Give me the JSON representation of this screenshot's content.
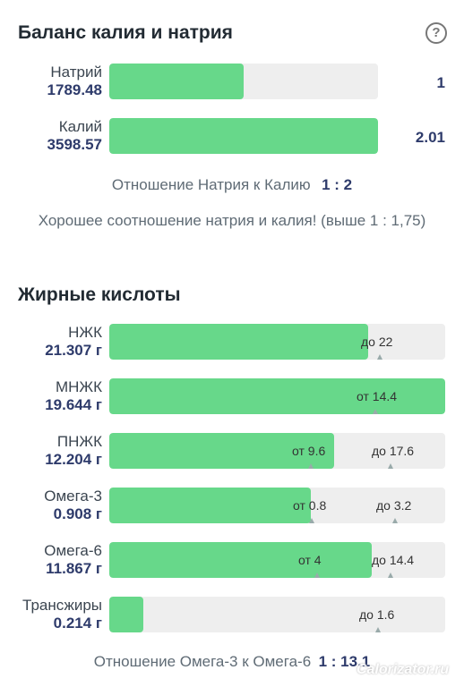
{
  "balance": {
    "title": "Баланс калия и натрия",
    "rows": [
      {
        "name": "Натрий",
        "value": "1789.48",
        "ratio": "1",
        "fill": 0.5
      },
      {
        "name": "Калий",
        "value": "3598.57",
        "ratio": "2.01",
        "fill": 1.0
      }
    ],
    "ratio_label": "Отношение Натрия к Калию",
    "ratio_value": "1 : 2",
    "message": "Хорошее соотношение натрия и калия! (выше 1 : 1,75)"
  },
  "fats": {
    "title": "Жирные кислоты",
    "rows": [
      {
        "name": "НЖК",
        "value": "21.307 г",
        "fill": 0.77,
        "from": "",
        "to": "до 22"
      },
      {
        "name": "МНЖК",
        "value": "19.644 г",
        "fill": 1.0,
        "from": "от 14.4",
        "to": ""
      },
      {
        "name": "ПНЖК",
        "value": "12.204 г",
        "fill": 0.67,
        "from": "от 9.6",
        "to": "до 17.6"
      },
      {
        "name": "Омега-3",
        "value": "0.908 г",
        "fill": 0.6,
        "from": "от 0.8",
        "to": "до 3.2"
      },
      {
        "name": "Омега-6",
        "value": "11.867 г",
        "fill": 0.78,
        "from": "от 4",
        "to": "до 14.4"
      },
      {
        "name": "Трансжиры",
        "value": "0.214 г",
        "fill": 0.1,
        "from": "",
        "to": "до 1.6"
      }
    ],
    "ratio_label": "Отношение Омега-3 к Омега-6",
    "ratio_value": "1 : 13.1"
  },
  "watermark": "Calorizator.ru"
}
